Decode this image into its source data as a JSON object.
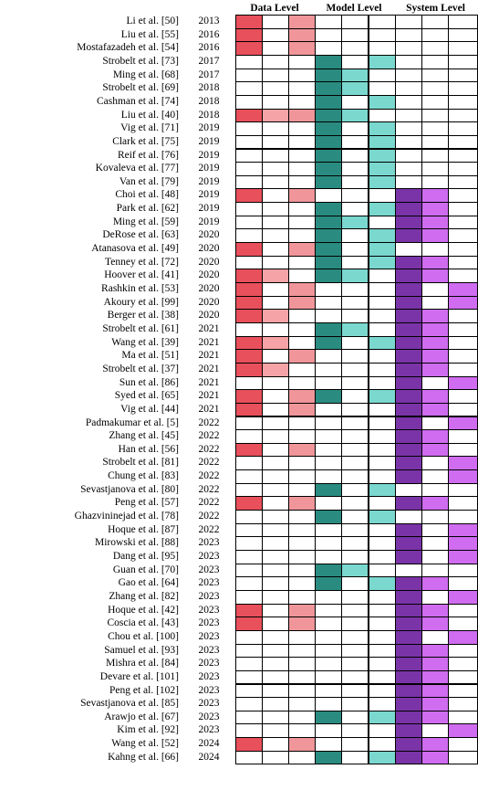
{
  "headers": {
    "data_level": "Data Level",
    "model_level": "Model Level",
    "system_level": "System Level"
  },
  "colors": {
    "D1": "#e8505b",
    "D2": "#f5a3a6",
    "D3": "#f0969a",
    "M1": "#2a8c80",
    "M2": "#7ad8cf",
    "M3": "#7ad8cf",
    "S1": "#7a34a8",
    "S2": "#cf6cf0",
    "S3": "#cf6cf0"
  },
  "rows": [
    {
      "ref": "Li et al. [50]",
      "year": "2013",
      "cells": [
        "D1",
        "",
        "D3",
        "",
        "",
        "",
        "",
        "",
        ""
      ]
    },
    {
      "ref": "Liu et al. [55]",
      "year": "2016",
      "cells": [
        "D1",
        "",
        "D3",
        "",
        "",
        "",
        "",
        "",
        ""
      ]
    },
    {
      "ref": "Mostafazadeh et al. [54]",
      "year": "2016",
      "cells": [
        "D1",
        "",
        "D3",
        "",
        "",
        "",
        "",
        "",
        ""
      ]
    },
    {
      "ref": "Strobelt et al. [73]",
      "year": "2017",
      "cells": [
        "",
        "",
        "",
        "M1",
        "",
        "M3",
        "",
        "",
        ""
      ]
    },
    {
      "ref": "Ming et al. [68]",
      "year": "2017",
      "cells": [
        "",
        "",
        "",
        "M1",
        "M2",
        "",
        "",
        "",
        ""
      ]
    },
    {
      "ref": "Strobelt et al. [69]",
      "year": "2018",
      "cells": [
        "",
        "",
        "",
        "M1",
        "M2",
        "",
        "",
        "",
        ""
      ]
    },
    {
      "ref": "Cashman et al. [74]",
      "year": "2018",
      "cells": [
        "",
        "",
        "",
        "M1",
        "",
        "M3",
        "",
        "",
        ""
      ]
    },
    {
      "ref": "Liu et al. [40]",
      "year": "2018",
      "cells": [
        "D1",
        "D2",
        "D3",
        "M1",
        "M2",
        "",
        "",
        "",
        ""
      ]
    },
    {
      "ref": "Vig et al. [71]",
      "year": "2019",
      "cells": [
        "",
        "",
        "",
        "M1",
        "",
        "M3",
        "",
        "",
        ""
      ]
    },
    {
      "ref": "Clark et al. [75]",
      "year": "2019",
      "cells": [
        "",
        "",
        "",
        "M1",
        "",
        "M3",
        "",
        "",
        ""
      ]
    },
    {
      "ref": "Reif et al. [76]",
      "year": "2019",
      "cells": [
        "",
        "",
        "",
        "M1",
        "",
        "M3",
        "",
        "",
        ""
      ]
    },
    {
      "ref": "Kovaleva et al. [77]",
      "year": "2019",
      "cells": [
        "",
        "",
        "",
        "M1",
        "",
        "M3",
        "",
        "",
        ""
      ]
    },
    {
      "ref": "Van et al. [79]",
      "year": "2019",
      "cells": [
        "",
        "",
        "",
        "M1",
        "",
        "M3",
        "",
        "",
        ""
      ]
    },
    {
      "ref": "Choi et al. [48]",
      "year": "2019",
      "cells": [
        "D1",
        "",
        "D3",
        "",
        "",
        "",
        "S1",
        "S2",
        ""
      ]
    },
    {
      "ref": "Park et al. [62]",
      "year": "2019",
      "cells": [
        "",
        "",
        "",
        "M1",
        "",
        "M3",
        "S1",
        "S2",
        ""
      ]
    },
    {
      "ref": "Ming et al. [59]",
      "year": "2019",
      "cells": [
        "",
        "",
        "",
        "M1",
        "M2",
        "",
        "S1",
        "S2",
        ""
      ]
    },
    {
      "ref": "DeRose et al. [63]",
      "year": "2020",
      "cells": [
        "",
        "",
        "",
        "M1",
        "",
        "M3",
        "S1",
        "S2",
        ""
      ]
    },
    {
      "ref": "Atanasova et al. [49]",
      "year": "2020",
      "cells": [
        "D1",
        "",
        "D3",
        "M1",
        "",
        "M3",
        "",
        "",
        ""
      ]
    },
    {
      "ref": "Tenney et al. [72]",
      "year": "2020",
      "cells": [
        "",
        "",
        "",
        "M1",
        "",
        "M3",
        "S1",
        "S2",
        ""
      ]
    },
    {
      "ref": "Hoover et al. [41]",
      "year": "2020",
      "cells": [
        "D1",
        "D2",
        "",
        "M1",
        "M2",
        "",
        "S1",
        "S2",
        ""
      ]
    },
    {
      "ref": "Rashkin et al. [53]",
      "year": "2020",
      "cells": [
        "D1",
        "",
        "D3",
        "",
        "",
        "",
        "S1",
        "",
        "S3"
      ]
    },
    {
      "ref": "Akoury et al. [99]",
      "year": "2020",
      "cells": [
        "D1",
        "",
        "D3",
        "",
        "",
        "",
        "S1",
        "",
        "S3"
      ]
    },
    {
      "ref": "Berger et al. [38]",
      "year": "2020",
      "cells": [
        "D1",
        "D2",
        "",
        "",
        "",
        "",
        "S1",
        "S2",
        ""
      ]
    },
    {
      "ref": "Strobelt et al. [61]",
      "year": "2021",
      "cells": [
        "",
        "",
        "",
        "M1",
        "M2",
        "",
        "S1",
        "S2",
        ""
      ]
    },
    {
      "ref": "Wang et al. [39]",
      "year": "2021",
      "cells": [
        "D1",
        "D2",
        "",
        "M1",
        "",
        "M3",
        "S1",
        "S2",
        ""
      ]
    },
    {
      "ref": "Ma et al. [51]",
      "year": "2021",
      "cells": [
        "D1",
        "",
        "D3",
        "",
        "",
        "",
        "S1",
        "S2",
        ""
      ]
    },
    {
      "ref": "Strobelt et al. [37]",
      "year": "2021",
      "cells": [
        "D1",
        "D2",
        "",
        "",
        "",
        "",
        "S1",
        "S2",
        ""
      ]
    },
    {
      "ref": "Sun et al. [86]",
      "year": "2021",
      "cells": [
        "",
        "",
        "",
        "",
        "",
        "",
        "S1",
        "",
        "S3"
      ]
    },
    {
      "ref": "Syed et al. [65]",
      "year": "2021",
      "cells": [
        "D1",
        "",
        "D3",
        "M1",
        "",
        "M3",
        "S1",
        "S2",
        ""
      ]
    },
    {
      "ref": "Vig et al. [44]",
      "year": "2021",
      "cells": [
        "D1",
        "",
        "D3",
        "",
        "",
        "",
        "S1",
        "S2",
        ""
      ]
    },
    {
      "ref": "Padmakumar et al. [5]",
      "year": "2022",
      "cells": [
        "",
        "",
        "",
        "",
        "",
        "",
        "S1",
        "",
        "S3"
      ]
    },
    {
      "ref": "Zhang et al. [45]",
      "year": "2022",
      "cells": [
        "",
        "",
        "",
        "",
        "",
        "",
        "S1",
        "S2",
        ""
      ]
    },
    {
      "ref": "Han et al. [56]",
      "year": "2022",
      "cells": [
        "D1",
        "",
        "D3",
        "",
        "",
        "",
        "S1",
        "S2",
        ""
      ]
    },
    {
      "ref": "Strobelt et al. [81]",
      "year": "2022",
      "cells": [
        "",
        "",
        "",
        "",
        "",
        "",
        "S1",
        "",
        "S3"
      ]
    },
    {
      "ref": "Chung et al. [83]",
      "year": "2022",
      "cells": [
        "",
        "",
        "",
        "",
        "",
        "",
        "S1",
        "",
        "S3"
      ]
    },
    {
      "ref": "Sevastjanova et al. [80]",
      "year": "2022",
      "cells": [
        "",
        "",
        "",
        "M1",
        "",
        "M3",
        "",
        "",
        ""
      ]
    },
    {
      "ref": "Peng et al. [57]",
      "year": "2022",
      "cells": [
        "D1",
        "",
        "D3",
        "",
        "",
        "",
        "S1",
        "S2",
        ""
      ]
    },
    {
      "ref": "Ghazvininejad et al. [78]",
      "year": "2022",
      "cells": [
        "",
        "",
        "",
        "M1",
        "",
        "M3",
        "",
        "",
        ""
      ]
    },
    {
      "ref": "Hoque et al. [87]",
      "year": "2022",
      "cells": [
        "",
        "",
        "",
        "",
        "",
        "",
        "S1",
        "",
        "S3"
      ]
    },
    {
      "ref": "Mirowski et al. [88]",
      "year": "2023",
      "cells": [
        "",
        "",
        "",
        "",
        "",
        "",
        "S1",
        "",
        "S3"
      ]
    },
    {
      "ref": "Dang et al. [95]",
      "year": "2023",
      "cells": [
        "",
        "",
        "",
        "",
        "",
        "",
        "S1",
        "",
        "S3"
      ]
    },
    {
      "ref": "Guan et al. [70]",
      "year": "2023",
      "cells": [
        "",
        "",
        "",
        "M1",
        "M2",
        "",
        "",
        "",
        ""
      ]
    },
    {
      "ref": "Gao et al. [64]",
      "year": "2023",
      "cells": [
        "",
        "",
        "",
        "M1",
        "",
        "M3",
        "S1",
        "S2",
        ""
      ]
    },
    {
      "ref": "Zhang et al. [82]",
      "year": "2023",
      "cells": [
        "",
        "",
        "",
        "",
        "",
        "",
        "S1",
        "",
        "S3"
      ]
    },
    {
      "ref": "Hoque et al. [42]",
      "year": "2023",
      "cells": [
        "D1",
        "",
        "D3",
        "",
        "",
        "",
        "S1",
        "S2",
        ""
      ]
    },
    {
      "ref": "Coscia et al. [43]",
      "year": "2023",
      "cells": [
        "D1",
        "",
        "D3",
        "",
        "",
        "",
        "S1",
        "S2",
        ""
      ]
    },
    {
      "ref": "Chou et al. [100]",
      "year": "2023",
      "cells": [
        "",
        "",
        "",
        "",
        "",
        "",
        "S1",
        "",
        "S3"
      ]
    },
    {
      "ref": "Samuel et al. [93]",
      "year": "2023",
      "cells": [
        "",
        "",
        "",
        "",
        "",
        "",
        "S1",
        "S2",
        ""
      ]
    },
    {
      "ref": "Mishra et al. [84]",
      "year": "2023",
      "cells": [
        "",
        "",
        "",
        "",
        "",
        "",
        "S1",
        "S2",
        ""
      ]
    },
    {
      "ref": "Devare et al. [101]",
      "year": "2023",
      "cells": [
        "",
        "",
        "",
        "",
        "",
        "",
        "S1",
        "S2",
        ""
      ]
    },
    {
      "ref": "Peng et al. [102]",
      "year": "2023",
      "cells": [
        "",
        "",
        "",
        "",
        "",
        "",
        "S1",
        "S2",
        ""
      ]
    },
    {
      "ref": "Sevastjanova et al. [85]",
      "year": "2023",
      "cells": [
        "",
        "",
        "",
        "",
        "",
        "",
        "S1",
        "S2",
        ""
      ]
    },
    {
      "ref": "Arawjo et al. [67]",
      "year": "2023",
      "cells": [
        "",
        "",
        "",
        "M1",
        "",
        "M3",
        "S1",
        "S2",
        ""
      ]
    },
    {
      "ref": "Kim et al. [92]",
      "year": "2023",
      "cells": [
        "",
        "",
        "",
        "",
        "",
        "",
        "S1",
        "",
        "S3"
      ]
    },
    {
      "ref": "Wang et al. [52]",
      "year": "2024",
      "cells": [
        "D1",
        "",
        "D3",
        "",
        "",
        "",
        "S1",
        "S2",
        ""
      ]
    },
    {
      "ref": "Kahng et al. [66]",
      "year": "2024",
      "cells": [
        "",
        "",
        "",
        "M1",
        "",
        "M3",
        "S1",
        "S2",
        ""
      ]
    }
  ]
}
